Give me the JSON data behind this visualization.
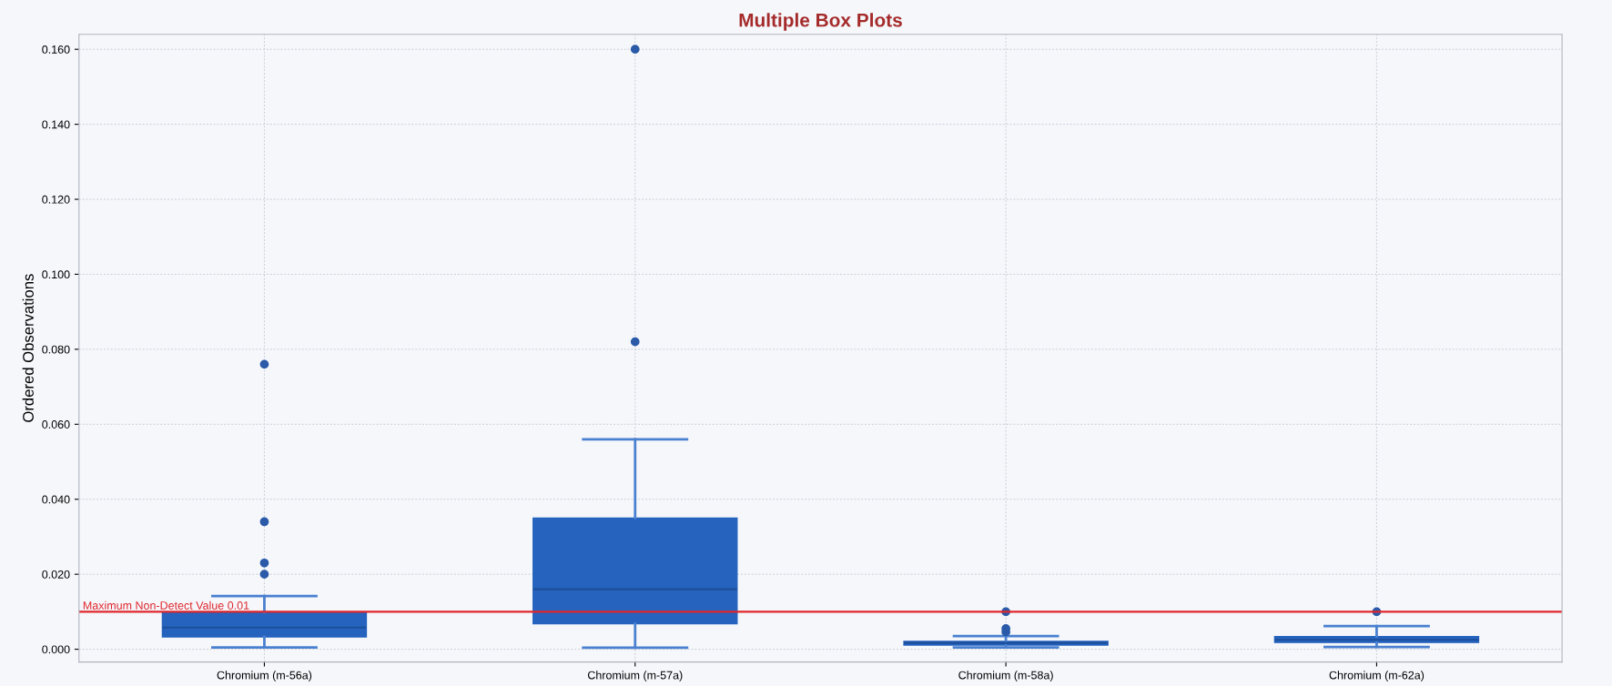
{
  "chart_data": {
    "type": "box",
    "title": "Multiple Box Plots",
    "ylabel": "Ordered Observations",
    "categories": [
      "Chromium (m-56a)",
      "Chromium (m-57a)",
      "Chromium (m-58a)",
      "Chromium (m-62a)"
    ],
    "series": [
      {
        "color": "#2563be",
        "boxes": [
          {
            "low": 0.0005,
            "q1": 0.0033,
            "median": 0.0058,
            "q3": 0.0099,
            "high": 0.0142,
            "outliers": [
              0.02,
              0.023,
              0.034,
              0.076
            ]
          },
          {
            "low": 0.0004,
            "q1": 0.0068,
            "median": 0.016,
            "q3": 0.035,
            "high": 0.056,
            "outliers": [
              0.082,
              0.16
            ]
          },
          {
            "low": 0.0005,
            "q1": 0.0011,
            "median": 0.0017,
            "q3": 0.0021,
            "high": 0.0035,
            "outliers": [
              0.0046,
              0.0055,
              0.01
            ]
          },
          {
            "low": 0.0006,
            "q1": 0.0018,
            "median": 0.0025,
            "q3": 0.0034,
            "high": 0.0062,
            "outliers": [
              0.01
            ]
          }
        ]
      }
    ],
    "ylim": [
      -0.0034,
      0.164
    ],
    "yticks": [
      {
        "value": 0,
        "label": "0.000"
      },
      {
        "value": 0.02,
        "label": "0.020"
      },
      {
        "value": 0.04,
        "label": "0.040"
      },
      {
        "value": 0.06,
        "label": "0.060"
      },
      {
        "value": 0.08,
        "label": "0.080"
      },
      {
        "value": 0.1,
        "label": "0.100"
      },
      {
        "value": 0.12,
        "label": "0.120"
      },
      {
        "value": 0.14,
        "label": "0.140"
      },
      {
        "value": 0.16,
        "label": "0.160"
      }
    ],
    "ref_lines": [
      {
        "axis": "y",
        "value": 0.01,
        "label": "Maximum Non-Detect Value 0.01",
        "color": "#e0262b"
      }
    ],
    "grid": true
  }
}
